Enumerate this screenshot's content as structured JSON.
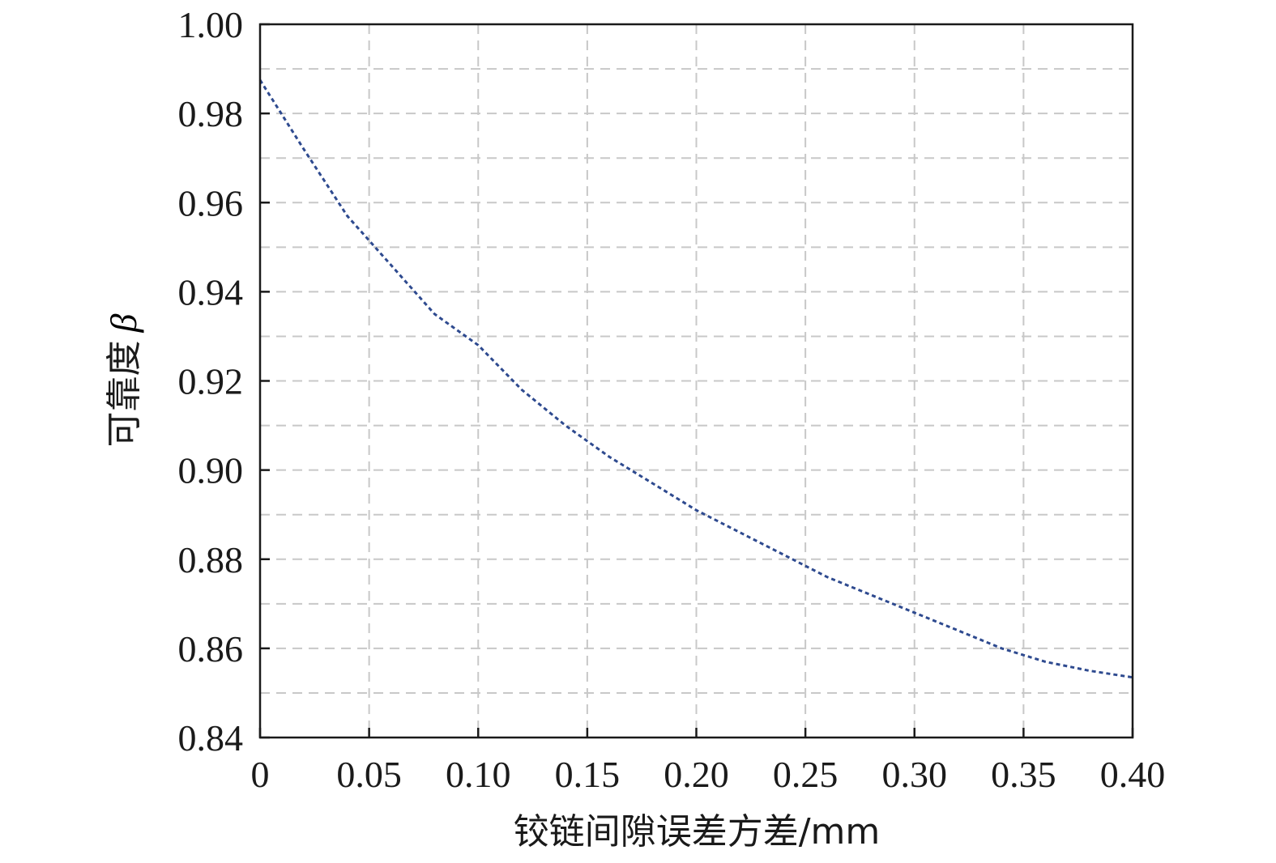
{
  "chart_data": {
    "type": "line",
    "title": "",
    "xlabel": "铰链间隙误差方差/mm",
    "ylabel": "可靠度",
    "ylabel_symbol": "β",
    "xlim": [
      0,
      0.4
    ],
    "ylim": [
      0.84,
      1.0
    ],
    "x_ticks": [
      0,
      0.05,
      0.1,
      0.15,
      0.2,
      0.25,
      0.3,
      0.35,
      0.4
    ],
    "x_tick_labels": [
      "0",
      "0.05",
      "0.10",
      "0.15",
      "0.20",
      "0.25",
      "0.30",
      "0.35",
      "0.40"
    ],
    "y_ticks": [
      0.84,
      0.86,
      0.88,
      0.9,
      0.92,
      0.94,
      0.96,
      0.98,
      1.0
    ],
    "y_tick_labels": [
      "0.84",
      "0.86",
      "0.88",
      "0.90",
      "0.92",
      "0.94",
      "0.96",
      "0.98",
      "1.00"
    ],
    "grid": true,
    "grid_style": "dashed",
    "line_style": "dotted",
    "colors": {
      "series": "#2e4a8f",
      "grid": "#c8c8c8",
      "axis": "#1a1a1a"
    },
    "series": [
      {
        "x": [
          0,
          0.02,
          0.04,
          0.06,
          0.08,
          0.1,
          0.12,
          0.14,
          0.16,
          0.18,
          0.2,
          0.22,
          0.24,
          0.26,
          0.28,
          0.3,
          0.32,
          0.34,
          0.36,
          0.38,
          0.4
        ],
        "y": [
          0.9875,
          0.972,
          0.957,
          0.946,
          0.935,
          0.928,
          0.918,
          0.91,
          0.903,
          0.897,
          0.891,
          0.886,
          0.881,
          0.876,
          0.872,
          0.868,
          0.864,
          0.86,
          0.857,
          0.855,
          0.8535
        ]
      }
    ]
  }
}
